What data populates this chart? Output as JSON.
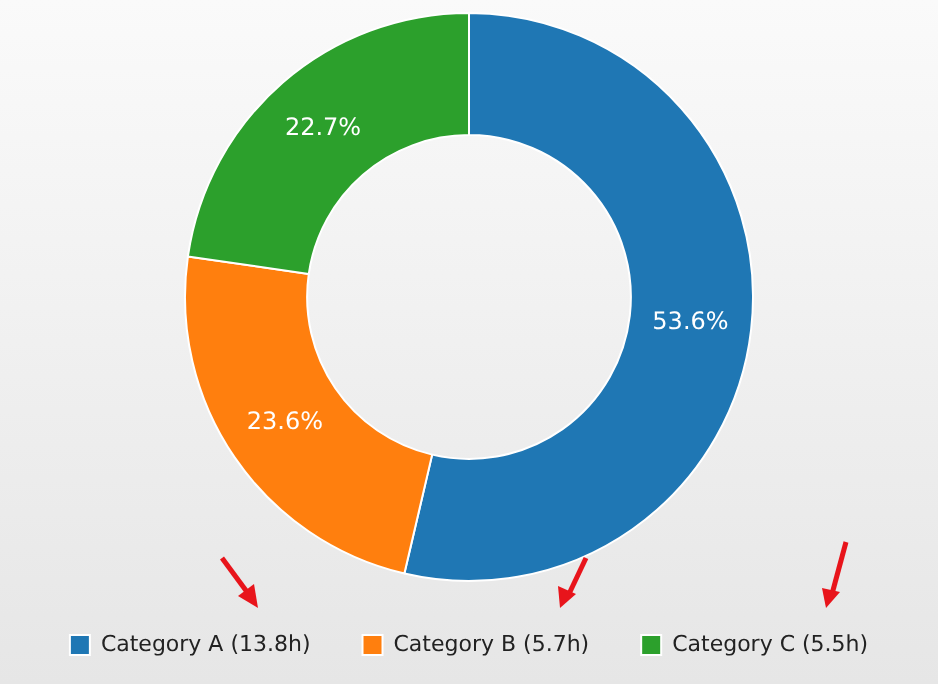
{
  "chart_data": {
    "type": "donut",
    "categories": [
      "Category A (13.8h)",
      "Category B (5.7h)",
      "Category C (5.5h)"
    ],
    "values": [
      53.6,
      23.6,
      22.7
    ],
    "value_labels": [
      "53.6%",
      "23.6%",
      "22.7%"
    ],
    "colors": [
      "#1f77b4",
      "#ff7f0e",
      "#2ca02c"
    ],
    "legend": "bottom"
  }
}
